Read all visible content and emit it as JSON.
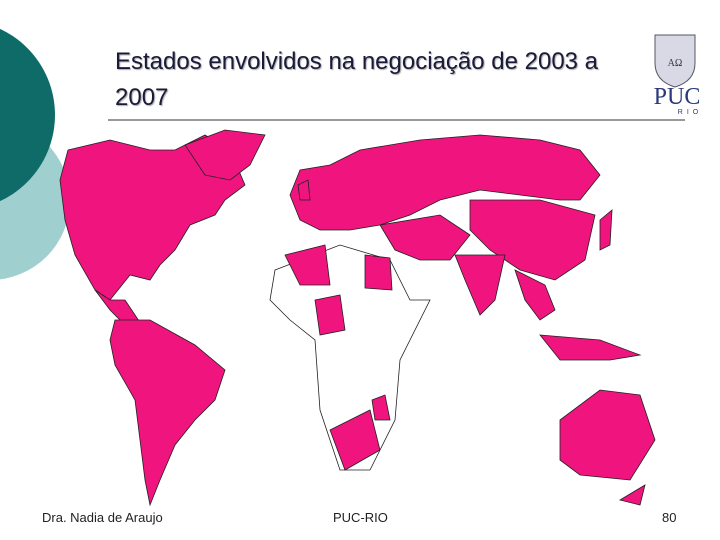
{
  "header": {
    "title": "Estados envolvidos na negociação de 2003 a 2007"
  },
  "logo": {
    "motto": "AΩ",
    "name": "PUC",
    "subname": "RIO"
  },
  "footer": {
    "author": "Dra. Nadia de Araujo",
    "institution": "PUC-RIO",
    "page_number": "80"
  }
}
